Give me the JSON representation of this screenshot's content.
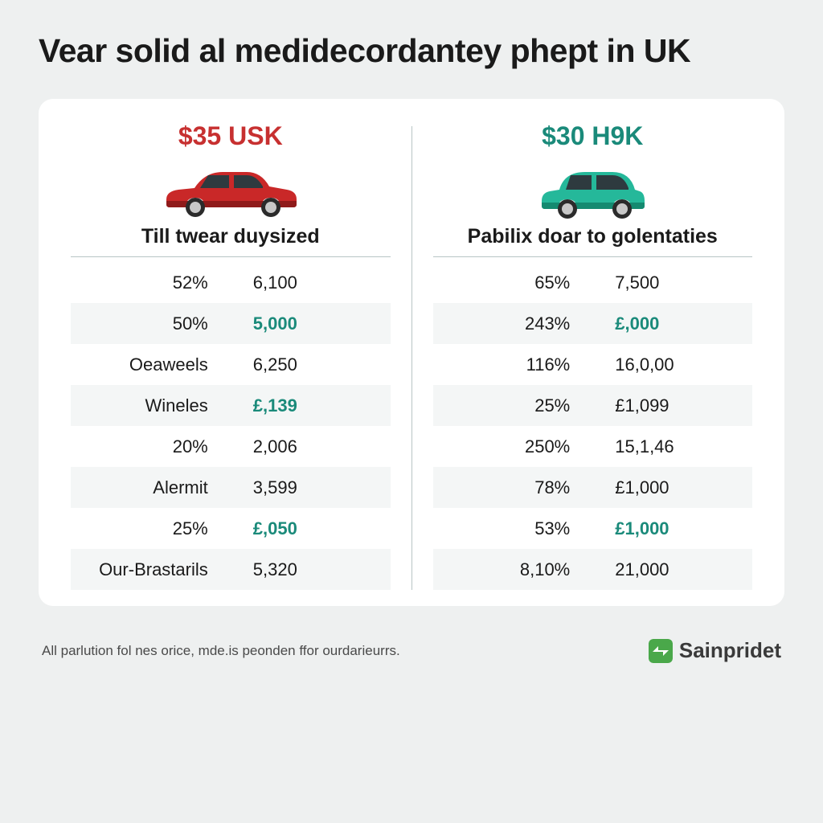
{
  "title": "Vear solid al medidecordantey phept in UK",
  "colors": {
    "bg": "#eef0f0",
    "card_bg": "#ffffff",
    "text": "#1a1a1a",
    "divider": "#b8c5c5",
    "row_alt": "#f4f6f6",
    "red": "#c73030",
    "teal": "#1a8a7a",
    "car_red_body": "#c92828",
    "car_red_dark": "#8f1a1a",
    "car_teal_body": "#25b89a",
    "car_teal_dark": "#148a70",
    "wheel": "#2b2b2b",
    "rim": "#c8c8c8",
    "window": "#2e3a3f",
    "brand_green": "#4aa84a",
    "footer_text": "#4a4a4a"
  },
  "left": {
    "price": "$35 USK",
    "price_color": "#c73030",
    "car_color": "red",
    "subtitle": "Till twear duysized",
    "rows": [
      {
        "a": "52%",
        "b": "6,100",
        "b_color": "#1a1a1a",
        "alt": false
      },
      {
        "a": "50%",
        "b": "5,000",
        "b_color": "#1a8a7a",
        "alt": true
      },
      {
        "a": "Oeaweels",
        "b": "6,250",
        "b_color": "#1a1a1a",
        "alt": false
      },
      {
        "a": "Wineles",
        "b": "£,139",
        "b_color": "#1a8a7a",
        "alt": true
      },
      {
        "a": "20%",
        "b": "2,006",
        "b_color": "#1a1a1a",
        "alt": false
      },
      {
        "a": "Alermit",
        "b": "3,599",
        "b_color": "#1a1a1a",
        "alt": true
      },
      {
        "a": "25%",
        "b": "£,050",
        "b_color": "#1a8a7a",
        "alt": false
      },
      {
        "a": "Our-Brastarils",
        "b": "5,320",
        "b_color": "#1a1a1a",
        "alt": true
      }
    ]
  },
  "right": {
    "price": "$30 H9K",
    "price_color": "#1a8a7a",
    "car_color": "teal",
    "subtitle": "Pabilix doar to golentaties",
    "rows": [
      {
        "a": "65%",
        "b": "7,500",
        "b_color": "#1a1a1a",
        "alt": false
      },
      {
        "a": "243%",
        "b": "£,000",
        "b_color": "#1a8a7a",
        "alt": true
      },
      {
        "a": "116%",
        "b": "16,0,00",
        "b_color": "#1a1a1a",
        "alt": false
      },
      {
        "a": "25%",
        "b": "£1,099",
        "b_color": "#1a1a1a",
        "alt": true
      },
      {
        "a": "250%",
        "b": "15,1,46",
        "b_color": "#1a1a1a",
        "alt": false
      },
      {
        "a": "78%",
        "b": "£1,000",
        "b_color": "#1a1a1a",
        "alt": true
      },
      {
        "a": "53%",
        "b": "£1,000",
        "b_color": "#1a8a7a",
        "alt": false
      },
      {
        "a": "8,10%",
        "b": "21,000",
        "b_color": "#1a1a1a",
        "alt": true
      }
    ]
  },
  "footer": {
    "text": "All parlution fol nes orice, mde.is peonden ffor ourdarieurrs.",
    "brand": "Sainpridet"
  }
}
